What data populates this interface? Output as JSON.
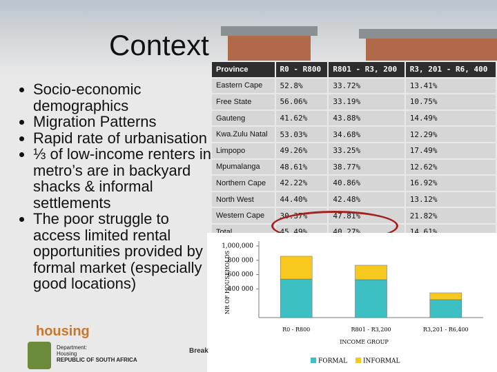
{
  "header": {
    "title": "Context"
  },
  "bullets": [
    "Socio-economic demographics",
    "Migration Patterns",
    "Rapid rate of urbanisation",
    "⅓ of low-income renters in metro’s are in backyard shacks & informal settlements",
    "The poor struggle to access limited rental opportunities provided by formal market (especially in good locations)"
  ],
  "table": {
    "header": [
      "Province",
      "R0 - R800",
      "R801 - R3, 200",
      "R3, 201 - R6, 400"
    ],
    "rows": [
      [
        "Eastern Cape",
        "52.8%",
        "33.72%",
        "13.41%"
      ],
      [
        "Free State",
        "56.06%",
        "33.19%",
        "10.75%"
      ],
      [
        "Gauteng",
        "41.62%",
        "43.88%",
        "14.49%"
      ],
      [
        "Kwa.Zulu Natal",
        "53.03%",
        "34.68%",
        "12.29%"
      ],
      [
        "Limpopo",
        "49.26%",
        "33.25%",
        "17.49%"
      ],
      [
        "Mpumalanga",
        "48.61%",
        "38.77%",
        "12.62%"
      ],
      [
        "Northern Cape",
        "42.22%",
        "40.86%",
        "16.92%"
      ],
      [
        "North West",
        "44.40%",
        "42.48%",
        "13.12%"
      ],
      [
        "Western Cape",
        "30.37%",
        "47.81%",
        "21.82%"
      ],
      [
        "Total",
        "45.49%",
        "40.27%",
        "14.61%"
      ]
    ]
  },
  "chart_data": {
    "type": "stacked-bar",
    "x_label": "INCOME GROUP",
    "y_label": "NR OF HOUSEHOLDS",
    "categories": [
      "R0 - R800",
      "R801 - R3,200",
      "R3,201 - R6,400"
    ],
    "series": [
      {
        "name": "FORMAL",
        "color": "#3cc0c4",
        "values": [
          538000,
          529000,
          250000
        ]
      },
      {
        "name": "INFORMAL",
        "color": "#f7c81e",
        "values": [
          318000,
          202000,
          96000
        ]
      }
    ],
    "ylim": [
      0,
      1000000
    ],
    "yticks": [
      {
        "value": 400000,
        "label": "400 000"
      },
      {
        "value": 600000,
        "label": "600 000"
      },
      {
        "value": 800000,
        "label": "800 000"
      },
      {
        "value": 1000000,
        "label": "1,000,000"
      }
    ],
    "grid": false,
    "legend": "bottom"
  },
  "footer": {
    "logo": "housing",
    "department_label": "Department:",
    "department": "Housing",
    "country": "REPUBLIC OF SOUTH AFRICA",
    "tagline": "Break"
  }
}
